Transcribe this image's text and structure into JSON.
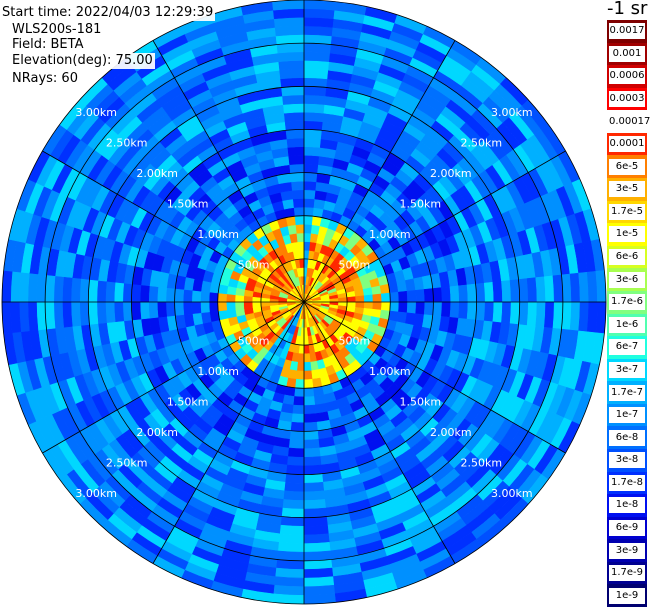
{
  "header": {
    "start_time": "Start time: 2022/04/03 12:29:39",
    "instrument": "WLS200s-181",
    "field": "Field: BETA",
    "elevation": "Elevation(deg): 75.00",
    "nrays": "NRays: 60"
  },
  "colorbar": {
    "units_label": "-1 sr",
    "labels": [
      "0.0017",
      "0.001",
      "0.0006",
      "0.0003",
      "0.00017",
      "0.0001",
      "6e-5",
      "3e-5",
      "1.7e-5",
      "1e-5",
      "6e-6",
      "3e-6",
      "1.7e-6",
      "1e-6",
      "6e-7",
      "3e-7",
      "1.7e-7",
      "1e-7",
      "6e-8",
      "3e-8",
      "1.7e-8",
      "1e-8",
      "6e-9",
      "3e-9",
      "1.7e-9",
      "1e-9"
    ],
    "colors": [
      "#7f0000",
      "#a00000",
      "#d00000",
      "#ff0000",
      "#ffffff",
      "#ff2800",
      "#ff7f00",
      "#ffb000",
      "#ffd700",
      "#ffff00",
      "#d7ff20",
      "#a8ff50",
      "#80ff80",
      "#50ffb0",
      "#20ffe0",
      "#00d8ff",
      "#00b0ff",
      "#0090ff",
      "#0070ff",
      "#0050ff",
      "#0030ff",
      "#0010f0",
      "#0000d0",
      "#0000b0",
      "#000090",
      "#000070"
    ]
  },
  "range_rings": {
    "labels_left": [
      "500m",
      "1.00km",
      "1.50km",
      "2.00km",
      "2.50km",
      "3.00km"
    ],
    "labels_right": [
      "500m",
      "1.00km",
      "1.50km",
      "2.00km",
      "2.50km",
      "3.00km"
    ],
    "ring_km": [
      0.5,
      1.0,
      1.5,
      2.0,
      2.5,
      3.0
    ],
    "max_range_km": 3.5
  },
  "scan": {
    "nrays": 60,
    "gates": 35
  }
}
